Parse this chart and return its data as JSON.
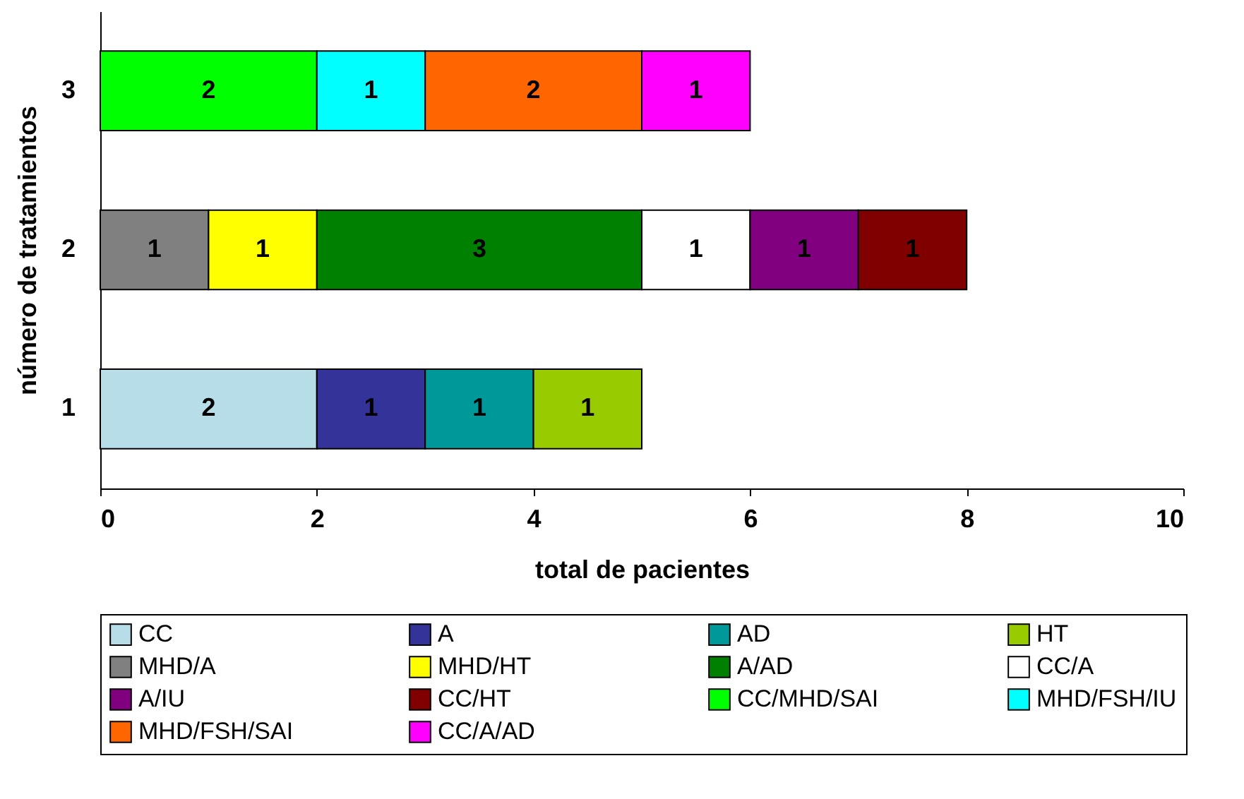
{
  "chart_data": {
    "type": "bar",
    "orientation": "horizontal",
    "stacked": true,
    "data_labels": true,
    "legend": "bottom",
    "grid": false,
    "xlabel": "total de pacientes",
    "ylabel": "número de tratamientos",
    "categories": [
      "3",
      "2",
      "1"
    ],
    "xlim": [
      0,
      10
    ],
    "xticks": [
      0,
      2,
      4,
      6,
      8,
      10
    ],
    "series": [
      {
        "name": "CC",
        "color": "#b7dee8",
        "values": [
          null,
          null,
          2
        ]
      },
      {
        "name": "A",
        "color": "#333399",
        "values": [
          null,
          null,
          1
        ]
      },
      {
        "name": "AD",
        "color": "#009999",
        "values": [
          null,
          null,
          1
        ]
      },
      {
        "name": "HT",
        "color": "#99cc00",
        "values": [
          null,
          null,
          1
        ]
      },
      {
        "name": "MHD/A",
        "color": "#808080",
        "values": [
          null,
          1,
          null
        ]
      },
      {
        "name": "MHD/HT",
        "color": "#ffff00",
        "values": [
          null,
          1,
          null
        ]
      },
      {
        "name": "A/AD",
        "color": "#008000",
        "values": [
          null,
          3,
          null
        ]
      },
      {
        "name": "CC/A",
        "color": "#ffffff",
        "values": [
          null,
          1,
          null
        ]
      },
      {
        "name": "A/IU",
        "color": "#800080",
        "values": [
          null,
          1,
          null
        ]
      },
      {
        "name": "CC/HT",
        "color": "#800000",
        "values": [
          null,
          1,
          null
        ]
      },
      {
        "name": "CC/MHD/SAI",
        "color": "#00ff00",
        "values": [
          2,
          null,
          null
        ]
      },
      {
        "name": "MHD/FSH/IU",
        "color": "#00ffff",
        "values": [
          1,
          null,
          null
        ]
      },
      {
        "name": "MHD/FSH/SAI",
        "color": "#ff6600",
        "values": [
          2,
          null,
          null
        ]
      },
      {
        "name": "CC/A/AD",
        "color": "#ff00ff",
        "values": [
          1,
          null,
          null
        ]
      }
    ]
  }
}
